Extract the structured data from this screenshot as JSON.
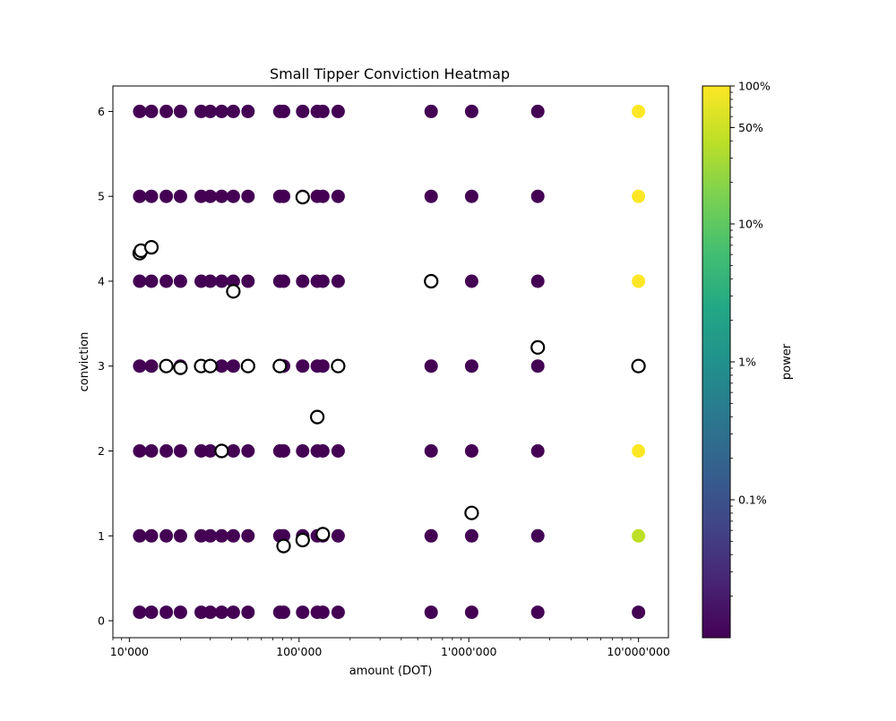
{
  "chart_data": {
    "type": "scatter",
    "title": "Small Tipper Conviction Heatmap",
    "xlabel": "amount (DOT)",
    "ylabel": "conviction",
    "xscale": "log",
    "xlim": [
      8000,
      15000000
    ],
    "ylim": [
      -0.2,
      6.3
    ],
    "grid": false,
    "x_ticks": [
      {
        "value": 10000,
        "label": "10'000"
      },
      {
        "value": 100000,
        "label": "100'000"
      },
      {
        "value": 1000000,
        "label": "1'000'000"
      },
      {
        "value": 10000000,
        "label": "10'000'000"
      }
    ],
    "y_ticks": [
      {
        "value": 0,
        "label": "0"
      },
      {
        "value": 1,
        "label": "1"
      },
      {
        "value": 2,
        "label": "2"
      },
      {
        "value": 3,
        "label": "3"
      },
      {
        "value": 4,
        "label": "4"
      },
      {
        "value": 5,
        "label": "5"
      },
      {
        "value": 6,
        "label": "6"
      }
    ],
    "grid_series": {
      "name": "power",
      "amounts": [
        11500,
        13500,
        16500,
        20000,
        26500,
        30000,
        35000,
        41000,
        50000,
        77000,
        81000,
        105000,
        128000,
        138000,
        170000,
        600000,
        1040000,
        2550000,
        10000000
      ],
      "conviction_rows": [
        {
          "row": 0,
          "conviction": 0.1
        },
        {
          "row": 1,
          "conviction": 1
        },
        {
          "row": 2,
          "conviction": 2
        },
        {
          "row": 3,
          "conviction": 3
        },
        {
          "row": 4,
          "conviction": 4
        },
        {
          "row": 5,
          "conviction": 5
        },
        {
          "row": 6,
          "conviction": 6
        }
      ],
      "colored_points": [
        {
          "amount": 10000000,
          "conviction": 6,
          "power_pct": 100
        },
        {
          "amount": 10000000,
          "conviction": 5,
          "power_pct": 100
        },
        {
          "amount": 10000000,
          "conviction": 4,
          "power_pct": 100
        },
        {
          "amount": 10000000,
          "conviction": 3,
          "power_pct": 100
        },
        {
          "amount": 10000000,
          "conviction": 2,
          "power_pct": 100
        },
        {
          "amount": 10000000,
          "conviction": 1,
          "power_pct": 40
        }
      ],
      "default_power_pct": 0.01
    },
    "open_markers": [
      {
        "amount": 11500,
        "conviction": 4.33
      },
      {
        "amount": 11700,
        "conviction": 4.36
      },
      {
        "amount": 13500,
        "conviction": 4.4
      },
      {
        "amount": 16500,
        "conviction": 3.0
      },
      {
        "amount": 20000,
        "conviction": 2.98
      },
      {
        "amount": 26500,
        "conviction": 3.0
      },
      {
        "amount": 30000,
        "conviction": 3.0
      },
      {
        "amount": 35000,
        "conviction": 2.0
      },
      {
        "amount": 41000,
        "conviction": 3.88
      },
      {
        "amount": 50000,
        "conviction": 3.0
      },
      {
        "amount": 77000,
        "conviction": 3.0
      },
      {
        "amount": 81000,
        "conviction": 0.88
      },
      {
        "amount": 105000,
        "conviction": 4.99
      },
      {
        "amount": 105000,
        "conviction": 0.95
      },
      {
        "amount": 128000,
        "conviction": 2.4
      },
      {
        "amount": 138000,
        "conviction": 1.02
      },
      {
        "amount": 170000,
        "conviction": 3.0
      },
      {
        "amount": 600000,
        "conviction": 4.0
      },
      {
        "amount": 1040000,
        "conviction": 1.27
      },
      {
        "amount": 2550000,
        "conviction": 3.22
      },
      {
        "amount": 10000000,
        "conviction": 3.0
      }
    ],
    "colorbar": {
      "label": "power",
      "scale": "log",
      "range_pct": [
        0.01,
        100
      ],
      "colormap": "viridis",
      "ticks": [
        {
          "value": 100,
          "label": "100%"
        },
        {
          "value": 50,
          "label": "50%"
        },
        {
          "value": 10,
          "label": "10%"
        },
        {
          "value": 1,
          "label": "1%"
        },
        {
          "value": 0.1,
          "label": "0.1%"
        }
      ]
    },
    "colors": {
      "viridis_min": "#440154",
      "viridis_max": "#fde725",
      "open_marker_edge": "#000000",
      "open_marker_face": "#ffffff"
    }
  }
}
